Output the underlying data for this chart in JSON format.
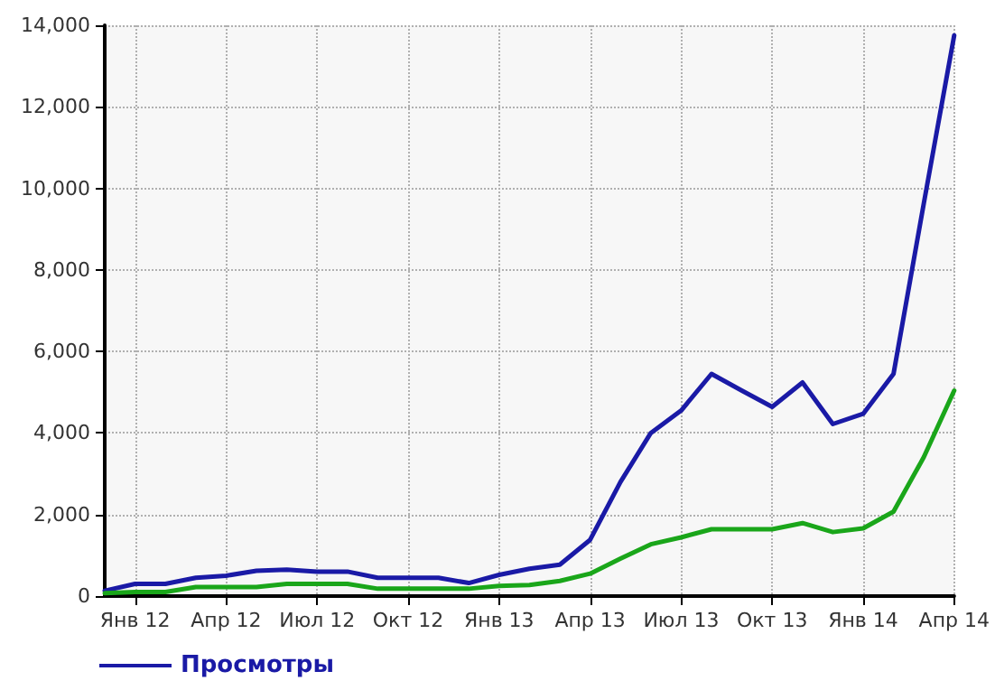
{
  "chart_data": {
    "type": "line",
    "categories": [
      null,
      "Янв 12",
      null,
      null,
      "Апр 12",
      null,
      null,
      "Июл 12",
      null,
      null,
      "Окт 12",
      null,
      null,
      "Янв 13",
      null,
      null,
      "Апр 13",
      null,
      null,
      "Июл 13",
      null,
      null,
      "Окт 13",
      null,
      null,
      "Янв 14",
      null,
      null,
      "Апр 14"
    ],
    "series": [
      {
        "name": "Просмотры",
        "color": "#1a1aa6",
        "values": [
          130,
          300,
          300,
          450,
          500,
          620,
          650,
          600,
          600,
          450,
          450,
          450,
          320,
          520,
          670,
          770,
          1380,
          2800,
          4000,
          4550,
          5450,
          5040,
          4640,
          5240,
          4220,
          4470,
          5450,
          9640,
          13750
        ]
      },
      {
        "color": "#1aa61a",
        "values": [
          70,
          100,
          100,
          220,
          220,
          220,
          300,
          300,
          300,
          180,
          180,
          180,
          180,
          250,
          270,
          370,
          550,
          920,
          1270,
          1440,
          1640,
          1640,
          1640,
          1790,
          1570,
          1660,
          2070,
          3410,
          5040
        ]
      }
    ],
    "ylim": [
      0,
      14000
    ],
    "yticks": [
      0,
      {
        "value": 2000,
        "label": "2,000"
      },
      {
        "value": 4000,
        "label": "4,000"
      },
      {
        "value": 6000,
        "label": "6,000"
      },
      {
        "value": 8000,
        "label": "8,000"
      },
      {
        "value": 10000,
        "label": "10,000"
      },
      {
        "value": 12000,
        "label": "12,000"
      },
      {
        "value": 14000,
        "label": "14,000"
      }
    ],
    "grid": true,
    "legend": "bottom left",
    "marker": "none",
    "line_style": "solid"
  }
}
